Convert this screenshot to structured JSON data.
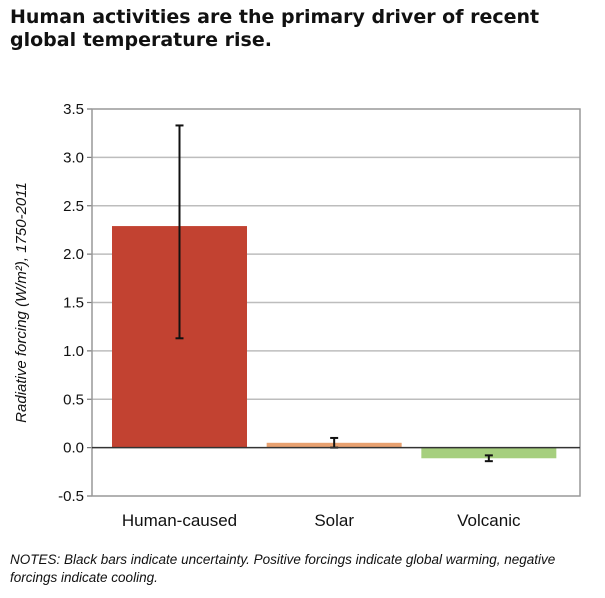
{
  "chart_data": {
    "type": "bar",
    "title": "Human activities are the primary driver of recent global temperature rise.",
    "ylabel": "Radiative forcing (W/m²), 1750-2011",
    "xlabel": "",
    "categories": [
      "Human-caused",
      "Solar",
      "Volcanic"
    ],
    "values": [
      2.29,
      0.05,
      -0.11
    ],
    "error_low": [
      1.13,
      0.0,
      -0.14
    ],
    "error_high": [
      3.33,
      0.1,
      -0.08
    ],
    "colors": [
      "#c24231",
      "#e8a170",
      "#a6cf7e"
    ],
    "ylim": [
      -0.5,
      3.5
    ],
    "yticks": [
      "-0.5",
      "0.0",
      "0.5",
      "1.0",
      "1.5",
      "2.0",
      "2.5",
      "3.0",
      "3.5"
    ],
    "grid": true,
    "notes": "NOTES: Black bars indicate uncertainty. Positive forcings indicate global warming, negative forcings indicate cooling."
  }
}
